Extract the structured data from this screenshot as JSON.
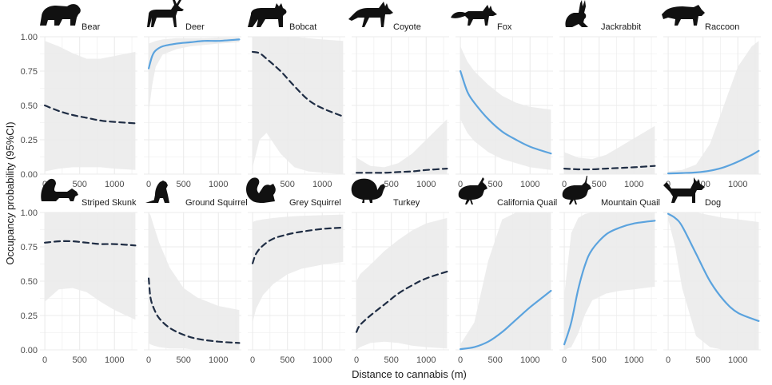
{
  "chart_data": {
    "type": "line",
    "xlabel": "Distance to cannabis (m)",
    "ylabel": "Occupancy probability (95%CI)",
    "xlim": [
      -70,
      1330
    ],
    "ylim": [
      0,
      1
    ],
    "x_ticks": [
      0,
      500,
      1000
    ],
    "y_ticks": [
      0,
      0.25,
      0.5,
      0.75,
      1
    ],
    "x_tick_labels": [
      "0",
      "500",
      "1000"
    ],
    "y_tick_labels": [
      "0.00",
      "0.25",
      "0.50",
      "0.75",
      "1.00"
    ],
    "grid": true,
    "colors": {
      "significant": "#5ba3de",
      "nonsignificant": "#1f2d44",
      "ribbon": "#ebebeb",
      "grid": "#ebebeb"
    },
    "legend": "none",
    "panels": [
      {
        "name": "Bear",
        "icon": "bear-icon",
        "style": "dashed",
        "x": [
          0,
          200,
          400,
          600,
          800,
          1000,
          1300
        ],
        "y": [
          0.5,
          0.46,
          0.43,
          0.41,
          0.39,
          0.38,
          0.37
        ],
        "lower": [
          0.02,
          0.04,
          0.05,
          0.05,
          0.05,
          0.04,
          0.03
        ],
        "upper": [
          0.97,
          0.93,
          0.88,
          0.84,
          0.84,
          0.86,
          0.89
        ]
      },
      {
        "name": "Deer",
        "icon": "deer-icon",
        "style": "solid",
        "x": [
          0,
          50,
          100,
          200,
          400,
          600,
          800,
          1000,
          1300
        ],
        "y": [
          0.77,
          0.86,
          0.9,
          0.93,
          0.95,
          0.96,
          0.97,
          0.97,
          0.98
        ],
        "lower": [
          0.45,
          0.65,
          0.78,
          0.87,
          0.91,
          0.93,
          0.94,
          0.95,
          0.96
        ],
        "upper": [
          0.95,
          0.96,
          0.97,
          0.98,
          0.99,
          0.99,
          0.99,
          0.995,
          0.995
        ]
      },
      {
        "name": "Bobcat",
        "icon": "bobcat-icon",
        "style": "dashed",
        "x": [
          0,
          100,
          200,
          400,
          600,
          800,
          1000,
          1300
        ],
        "y": [
          0.89,
          0.88,
          0.84,
          0.75,
          0.64,
          0.54,
          0.48,
          0.42
        ],
        "lower": [
          0.05,
          0.25,
          0.3,
          0.15,
          0.05,
          0.02,
          0.01,
          0.0
        ],
        "upper": [
          1.0,
          1.0,
          1.0,
          1.0,
          1.0,
          0.99,
          0.98,
          0.97
        ]
      },
      {
        "name": "Coyote",
        "icon": "coyote-icon",
        "style": "dashed",
        "x": [
          0,
          200,
          400,
          600,
          800,
          1000,
          1300
        ],
        "y": [
          0.01,
          0.01,
          0.01,
          0.015,
          0.02,
          0.03,
          0.04
        ],
        "lower": [
          0.0,
          0.0,
          0.0,
          0.0,
          0.0,
          0.0,
          0.0
        ],
        "upper": [
          0.12,
          0.06,
          0.05,
          0.08,
          0.15,
          0.25,
          0.4
        ]
      },
      {
        "name": "Fox",
        "icon": "fox-icon",
        "style": "solid",
        "x": [
          0,
          100,
          200,
          400,
          600,
          800,
          1000,
          1300
        ],
        "y": [
          0.75,
          0.6,
          0.52,
          0.4,
          0.31,
          0.25,
          0.2,
          0.15
        ],
        "lower": [
          0.4,
          0.3,
          0.24,
          0.16,
          0.11,
          0.08,
          0.05,
          0.03
        ],
        "upper": [
          0.93,
          0.82,
          0.75,
          0.65,
          0.57,
          0.52,
          0.49,
          0.47
        ]
      },
      {
        "name": "Jackrabbit",
        "icon": "jackrabbit-icon",
        "style": "dashed",
        "x": [
          0,
          200,
          400,
          600,
          800,
          1000,
          1300
        ],
        "y": [
          0.04,
          0.035,
          0.035,
          0.04,
          0.045,
          0.05,
          0.06
        ],
        "lower": [
          0.0,
          0.0,
          0.0,
          0.0,
          0.0,
          0.0,
          0.0
        ],
        "upper": [
          0.16,
          0.12,
          0.11,
          0.14,
          0.2,
          0.26,
          0.35
        ]
      },
      {
        "name": "Raccoon",
        "icon": "raccoon-icon",
        "style": "solid",
        "x": [
          0,
          200,
          400,
          600,
          800,
          1000,
          1200,
          1300
        ],
        "y": [
          0.005,
          0.008,
          0.012,
          0.025,
          0.05,
          0.09,
          0.14,
          0.17
        ],
        "lower": [
          0.0,
          0.0,
          0.0,
          0.0,
          0.0,
          0.0,
          0.0,
          0.0
        ],
        "upper": [
          0.02,
          0.03,
          0.07,
          0.22,
          0.5,
          0.78,
          0.93,
          0.97
        ]
      },
      {
        "name": "Striped Skunk",
        "icon": "skunk-icon",
        "style": "dashed",
        "x": [
          0,
          200,
          400,
          600,
          800,
          1000,
          1300
        ],
        "y": [
          0.78,
          0.79,
          0.79,
          0.78,
          0.77,
          0.77,
          0.76
        ],
        "lower": [
          0.35,
          0.44,
          0.45,
          0.42,
          0.35,
          0.29,
          0.22
        ],
        "upper": [
          1.0,
          1.0,
          1.0,
          1.0,
          1.0,
          1.0,
          1.0
        ]
      },
      {
        "name": "Ground Squirrel",
        "icon": "ground-squirrel-icon",
        "style": "dashed",
        "x": [
          0,
          25,
          75,
          150,
          300,
          500,
          700,
          1000,
          1300
        ],
        "y": [
          0.52,
          0.38,
          0.3,
          0.23,
          0.16,
          0.11,
          0.08,
          0.06,
          0.05
        ],
        "lower": [
          0.05,
          0.04,
          0.03,
          0.02,
          0.01,
          0.01,
          0.0,
          0.0,
          0.0
        ],
        "upper": [
          1.0,
          0.98,
          0.9,
          0.78,
          0.6,
          0.45,
          0.38,
          0.32,
          0.29
        ]
      },
      {
        "name": "Grey Squirrel",
        "icon": "grey-squirrel-icon",
        "style": "dashed",
        "x": [
          0,
          50,
          150,
          300,
          500,
          700,
          1000,
          1300
        ],
        "y": [
          0.63,
          0.7,
          0.76,
          0.81,
          0.84,
          0.86,
          0.88,
          0.89
        ],
        "lower": [
          0.2,
          0.3,
          0.4,
          0.48,
          0.55,
          0.59,
          0.62,
          0.64
        ],
        "upper": [
          0.93,
          0.94,
          0.95,
          0.96,
          0.97,
          0.975,
          0.98,
          0.985
        ]
      },
      {
        "name": "Turkey",
        "icon": "turkey-icon",
        "style": "dashed",
        "x": [
          0,
          50,
          200,
          400,
          600,
          800,
          1000,
          1300
        ],
        "y": [
          0.13,
          0.18,
          0.25,
          0.33,
          0.41,
          0.47,
          0.52,
          0.57
        ],
        "lower": [
          0.0,
          0.02,
          0.05,
          0.06,
          0.05,
          0.03,
          0.02,
          0.01
        ],
        "upper": [
          0.5,
          0.55,
          0.62,
          0.72,
          0.8,
          0.87,
          0.92,
          0.96
        ]
      },
      {
        "name": "California Quail",
        "icon": "california-quail-icon",
        "style": "solid",
        "x": [
          0,
          200,
          400,
          600,
          800,
          1000,
          1200,
          1300
        ],
        "y": [
          0.005,
          0.02,
          0.06,
          0.13,
          0.22,
          0.31,
          0.39,
          0.43
        ],
        "lower": [
          0.0,
          0.0,
          0.0,
          0.0,
          0.0,
          0.0,
          0.0,
          0.0
        ],
        "upper": [
          0.04,
          0.2,
          0.65,
          0.95,
          1.0,
          1.0,
          1.0,
          1.0
        ]
      },
      {
        "name": "Mountain Quail",
        "icon": "mountain-quail-icon",
        "style": "solid",
        "x": [
          0,
          100,
          200,
          300,
          400,
          600,
          800,
          1000,
          1300
        ],
        "y": [
          0.04,
          0.2,
          0.44,
          0.62,
          0.73,
          0.84,
          0.89,
          0.92,
          0.94
        ],
        "lower": [
          0.0,
          0.02,
          0.12,
          0.26,
          0.36,
          0.41,
          0.43,
          0.44,
          0.46
        ],
        "upper": [
          0.4,
          0.85,
          0.96,
          0.99,
          1.0,
          1.0,
          1.0,
          1.0,
          1.0
        ]
      },
      {
        "name": "Dog",
        "icon": "dog-icon",
        "style": "solid",
        "x": [
          0,
          100,
          200,
          400,
          600,
          800,
          1000,
          1300
        ],
        "y": [
          0.99,
          0.96,
          0.9,
          0.7,
          0.5,
          0.36,
          0.27,
          0.21
        ],
        "lower": [
          0.95,
          0.75,
          0.45,
          0.1,
          0.02,
          0.0,
          0.0,
          0.0
        ],
        "upper": [
          1.0,
          1.0,
          1.0,
          1.0,
          0.98,
          0.96,
          0.95,
          0.93
        ]
      }
    ]
  }
}
